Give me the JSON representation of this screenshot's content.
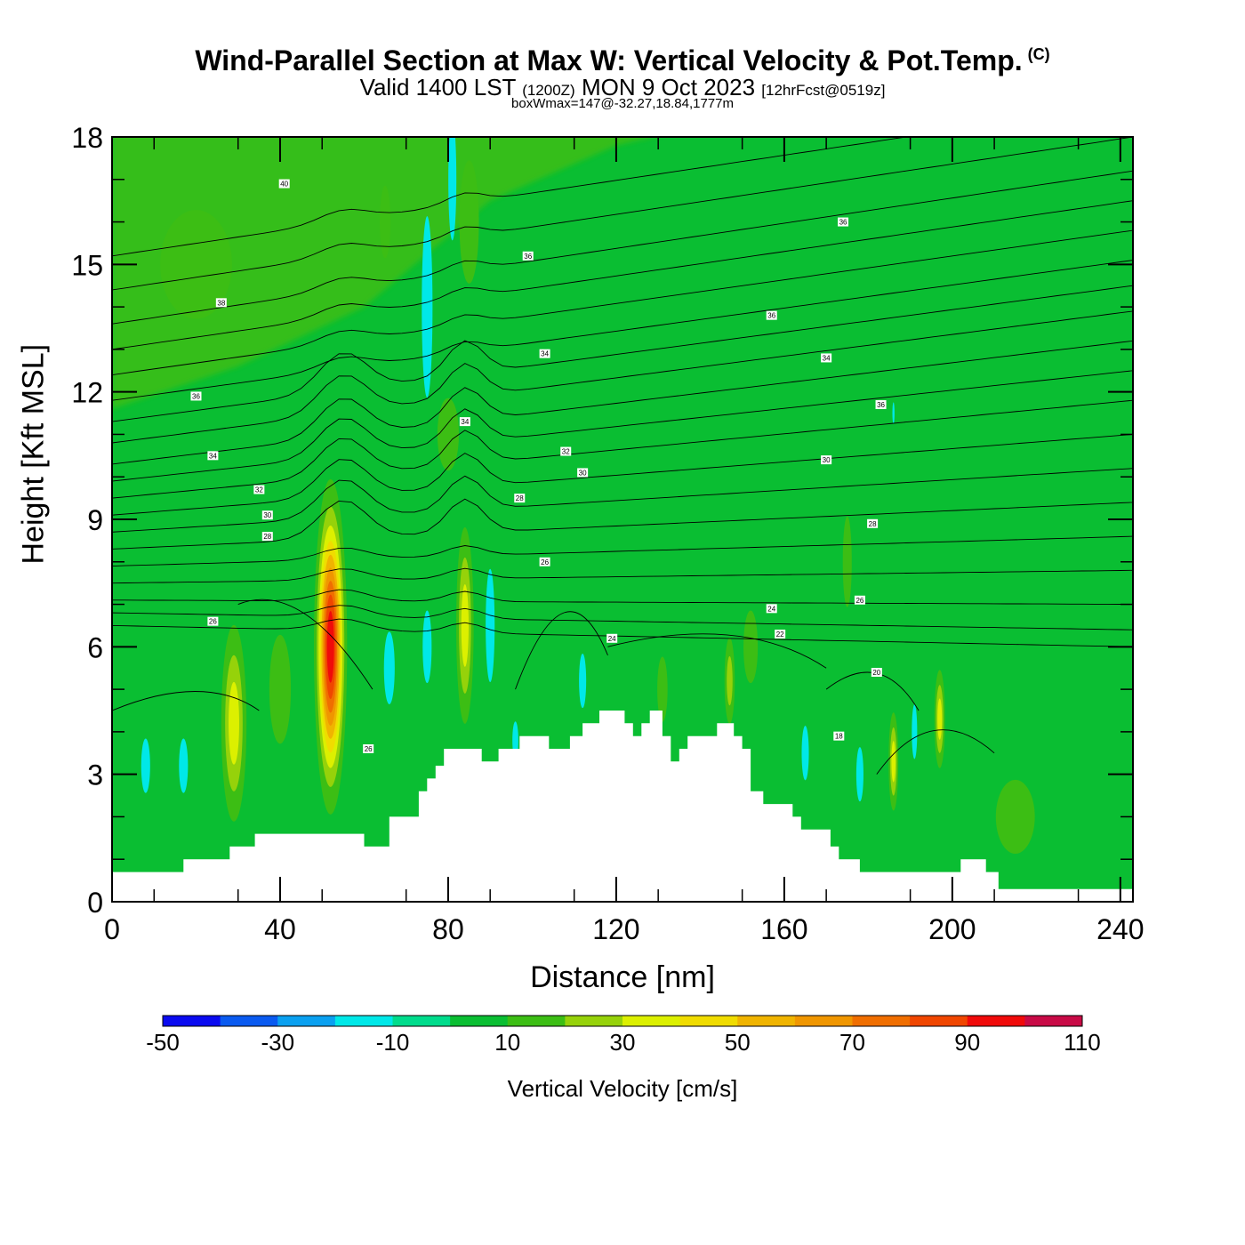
{
  "title": {
    "main": "Wind-Parallel Section at Max W: Vertical Velocity & Pot.Temp.",
    "copyright": "(C)",
    "valid_prefix": "Valid 1400 LST",
    "valid_utc": "(1200Z)",
    "valid_day": "MON 9 Oct 2023",
    "forecast": "[12hrFcst@0519z]",
    "boxwmax": "boxWmax=147@-32.27,18.84,1777m"
  },
  "chart_data": {
    "type": "heatmap",
    "xlabel": "Distance [nm]",
    "ylabel": "Height [Kft MSL]",
    "xlim": [
      0,
      243
    ],
    "ylim": [
      0,
      18
    ],
    "x_ticks": [
      0,
      40,
      80,
      120,
      160,
      200,
      240
    ],
    "y_ticks": [
      0,
      3,
      6,
      9,
      12,
      15,
      18
    ],
    "colorbar": {
      "label": "Vertical Velocity [cm/s]",
      "levels": [
        -50,
        -40,
        -30,
        -20,
        -10,
        0,
        10,
        20,
        30,
        40,
        50,
        60,
        70,
        80,
        90,
        100,
        110
      ],
      "tick_labels": [
        "-50",
        "-30",
        "-10",
        "10",
        "30",
        "50",
        "70",
        "90",
        "110"
      ],
      "colors": [
        "#0a0af0",
        "#0a5af0",
        "#0aa0f0",
        "#00e8e8",
        "#00dc8c",
        "#0abe32",
        "#3cbe14",
        "#96d20a",
        "#dcf000",
        "#f0dc00",
        "#f0b400",
        "#f09600",
        "#f06e00",
        "#f04600",
        "#f00a0a",
        "#c80a46"
      ]
    },
    "terrain": [
      [
        0,
        0.7
      ],
      [
        17,
        0.7
      ],
      [
        17,
        1.0
      ],
      [
        28,
        1.0
      ],
      [
        28,
        1.3
      ],
      [
        34,
        1.3
      ],
      [
        34,
        1.6
      ],
      [
        60,
        1.6
      ],
      [
        60,
        1.3
      ],
      [
        66,
        1.3
      ],
      [
        66,
        2.0
      ],
      [
        73,
        2.0
      ],
      [
        73,
        2.6
      ],
      [
        75,
        2.6
      ],
      [
        75,
        2.9
      ],
      [
        77,
        2.9
      ],
      [
        77,
        3.2
      ],
      [
        79,
        3.2
      ],
      [
        79,
        3.6
      ],
      [
        88,
        3.6
      ],
      [
        88,
        3.3
      ],
      [
        92,
        3.3
      ],
      [
        92,
        3.6
      ],
      [
        97,
        3.6
      ],
      [
        97,
        3.9
      ],
      [
        104,
        3.9
      ],
      [
        104,
        3.6
      ],
      [
        109,
        3.6
      ],
      [
        109,
        3.9
      ],
      [
        112,
        3.9
      ],
      [
        112,
        4.2
      ],
      [
        116,
        4.2
      ],
      [
        116,
        4.5
      ],
      [
        122,
        4.5
      ],
      [
        122,
        4.2
      ],
      [
        124,
        4.2
      ],
      [
        124,
        3.9
      ],
      [
        126,
        3.9
      ],
      [
        126,
        4.2
      ],
      [
        128,
        4.2
      ],
      [
        128,
        4.5
      ],
      [
        131,
        4.5
      ],
      [
        131,
        3.9
      ],
      [
        133,
        3.9
      ],
      [
        133,
        3.3
      ],
      [
        135,
        3.3
      ],
      [
        135,
        3.6
      ],
      [
        137,
        3.6
      ],
      [
        137,
        3.9
      ],
      [
        144,
        3.9
      ],
      [
        144,
        4.2
      ],
      [
        148,
        4.2
      ],
      [
        148,
        3.9
      ],
      [
        150,
        3.9
      ],
      [
        150,
        3.6
      ],
      [
        152,
        3.6
      ],
      [
        152,
        2.6
      ],
      [
        155,
        2.6
      ],
      [
        155,
        2.3
      ],
      [
        162,
        2.3
      ],
      [
        162,
        2.0
      ],
      [
        164,
        2.0
      ],
      [
        164,
        1.7
      ],
      [
        171,
        1.7
      ],
      [
        171,
        1.3
      ],
      [
        173,
        1.3
      ],
      [
        173,
        1.0
      ],
      [
        178,
        1.0
      ],
      [
        178,
        0.7
      ],
      [
        202,
        0.7
      ],
      [
        202,
        1.0
      ],
      [
        208,
        1.0
      ],
      [
        208,
        0.7
      ],
      [
        211,
        0.7
      ],
      [
        211,
        0.3
      ],
      [
        243,
        0.3
      ]
    ],
    "updrafts": [
      {
        "x": 52,
        "y": 6.0,
        "sx": 2.6,
        "sy": 2.6,
        "w": 100
      },
      {
        "x": 29,
        "y": 4.2,
        "sx": 2.6,
        "sy": 2.0,
        "w": 38
      },
      {
        "x": 84,
        "y": 6.5,
        "sx": 1.8,
        "sy": 2.0,
        "w": 38
      },
      {
        "x": 186,
        "y": 3.3,
        "sx": 1.0,
        "sy": 1.0,
        "w": 38
      },
      {
        "x": 197,
        "y": 4.3,
        "sx": 1.1,
        "sy": 1.0,
        "w": 38
      },
      {
        "x": 147,
        "y": 5.2,
        "sx": 1.2,
        "sy": 1.0,
        "w": 28
      },
      {
        "x": 131,
        "y": 5.0,
        "sx": 1.6,
        "sy": 1.0,
        "w": 18
      },
      {
        "x": 152,
        "y": 6.0,
        "sx": 4.0,
        "sy": 2.0,
        "w": 12
      },
      {
        "x": 40,
        "y": 5.0,
        "sx": 6.0,
        "sy": 3.0,
        "w": 12
      },
      {
        "x": 80,
        "y": 11.0,
        "sx": 6.0,
        "sy": 2.0,
        "w": 12
      },
      {
        "x": 20,
        "y": 15.0,
        "sx": 20.0,
        "sy": 3.0,
        "w": 12
      },
      {
        "x": 85,
        "y": 16.0,
        "sx": 4.0,
        "sy": 2.5,
        "w": 14
      },
      {
        "x": 175,
        "y": 8.0,
        "sx": 2.5,
        "sy": 2.5,
        "w": 12
      },
      {
        "x": 215,
        "y": 2.0,
        "sx": 8.0,
        "sy": 1.5,
        "w": 14
      },
      {
        "x": 65,
        "y": 16.0,
        "sx": 3.0,
        "sy": 2.0,
        "w": 12
      }
    ],
    "downdrafts": [
      {
        "x": 8,
        "y": 3.2,
        "sx": 2.5,
        "sy": 1.5,
        "w": -12
      },
      {
        "x": 17,
        "y": 3.2,
        "sx": 2.5,
        "sy": 1.5,
        "w": -12
      },
      {
        "x": 66,
        "y": 5.5,
        "sx": 3.0,
        "sy": 2.0,
        "w": -12
      },
      {
        "x": 75,
        "y": 6.0,
        "sx": 2.5,
        "sy": 2.0,
        "w": -12
      },
      {
        "x": 90,
        "y": 6.5,
        "sx": 1.2,
        "sy": 1.5,
        "w": -22
      },
      {
        "x": 75,
        "y": 14.0,
        "sx": 3.0,
        "sy": 5.0,
        "w": -12
      },
      {
        "x": 81,
        "y": 17.0,
        "sx": 1.0,
        "sy": 1.5,
        "w": -25
      },
      {
        "x": 112,
        "y": 5.2,
        "sx": 2.0,
        "sy": 1.5,
        "w": -12
      },
      {
        "x": 165,
        "y": 3.5,
        "sx": 2.0,
        "sy": 1.5,
        "w": -12
      },
      {
        "x": 178,
        "y": 3.0,
        "sx": 2.0,
        "sy": 1.5,
        "w": -12
      },
      {
        "x": 191,
        "y": 4.0,
        "sx": 1.5,
        "sy": 1.5,
        "w": -12
      },
      {
        "x": 186,
        "y": 11.5,
        "sx": 0.6,
        "sy": 0.6,
        "w": -12
      },
      {
        "x": 96,
        "y": 3.8,
        "sx": 0.8,
        "sy": 0.5,
        "w": -22
      }
    ],
    "isentropes": [
      {
        "level": "40",
        "y0": 15.2,
        "y1": 18.8
      },
      {
        "level": "",
        "y0": 14.4,
        "y1": 18.0
      },
      {
        "level": "38",
        "y0": 13.6,
        "y1": 17.2
      },
      {
        "level": "",
        "y0": 13.0,
        "y1": 16.5
      },
      {
        "level": "",
        "y0": 12.4,
        "y1": 15.8
      },
      {
        "level": "36",
        "y0": 11.8,
        "y1": 15.1
      },
      {
        "level": "",
        "y0": 11.3,
        "y1": 14.5
      },
      {
        "level": "",
        "y0": 10.8,
        "y1": 13.9
      },
      {
        "level": "34",
        "y0": 10.3,
        "y1": 13.2
      },
      {
        "level": "",
        "y0": 9.9,
        "y1": 12.5
      },
      {
        "level": "",
        "y0": 9.5,
        "y1": 11.8
      },
      {
        "level": "32",
        "y0": 9.1,
        "y1": 11.0
      },
      {
        "level": "",
        "y0": 8.7,
        "y1": 10.2
      },
      {
        "level": "30",
        "y0": 8.3,
        "y1": 9.4
      },
      {
        "level": "",
        "y0": 7.9,
        "y1": 8.6
      },
      {
        "level": "28",
        "y0": 7.5,
        "y1": 7.8
      },
      {
        "level": "",
        "y0": 7.1,
        "y1": 7.0
      },
      {
        "level": "",
        "y0": 6.8,
        "y1": 6.4
      },
      {
        "level": "26",
        "y0": 6.5,
        "y1": 6.0
      }
    ],
    "contour_labels": [
      {
        "text": "40",
        "x": 41,
        "y": 16.9
      },
      {
        "text": "38",
        "x": 26,
        "y": 14.1
      },
      {
        "text": "36",
        "x": 20,
        "y": 11.9
      },
      {
        "text": "34",
        "x": 24,
        "y": 10.5
      },
      {
        "text": "32",
        "x": 35,
        "y": 9.7
      },
      {
        "text": "30",
        "x": 37,
        "y": 9.1
      },
      {
        "text": "28",
        "x": 37,
        "y": 8.6
      },
      {
        "text": "26",
        "x": 24,
        "y": 6.6
      },
      {
        "text": "26",
        "x": 61,
        "y": 3.6
      },
      {
        "text": "36",
        "x": 99,
        "y": 15.2
      },
      {
        "text": "34",
        "x": 84,
        "y": 11.3
      },
      {
        "text": "34",
        "x": 103,
        "y": 12.9
      },
      {
        "text": "32",
        "x": 108,
        "y": 10.6
      },
      {
        "text": "30",
        "x": 112,
        "y": 10.1
      },
      {
        "text": "28",
        "x": 97,
        "y": 9.5
      },
      {
        "text": "26",
        "x": 103,
        "y": 8.0
      },
      {
        "text": "24",
        "x": 119,
        "y": 6.2
      },
      {
        "text": "36",
        "x": 174,
        "y": 16.0
      },
      {
        "text": "36",
        "x": 157,
        "y": 13.8
      },
      {
        "text": "34",
        "x": 170,
        "y": 12.8
      },
      {
        "text": "36",
        "x": 183,
        "y": 11.7
      },
      {
        "text": "30",
        "x": 170,
        "y": 10.4
      },
      {
        "text": "28",
        "x": 181,
        "y": 8.9
      },
      {
        "text": "26",
        "x": 178,
        "y": 7.1
      },
      {
        "text": "24",
        "x": 157,
        "y": 6.9
      },
      {
        "text": "22",
        "x": 159,
        "y": 6.3
      },
      {
        "text": "20",
        "x": 182,
        "y": 5.4
      },
      {
        "text": "18",
        "x": 173,
        "y": 3.9
      }
    ]
  }
}
